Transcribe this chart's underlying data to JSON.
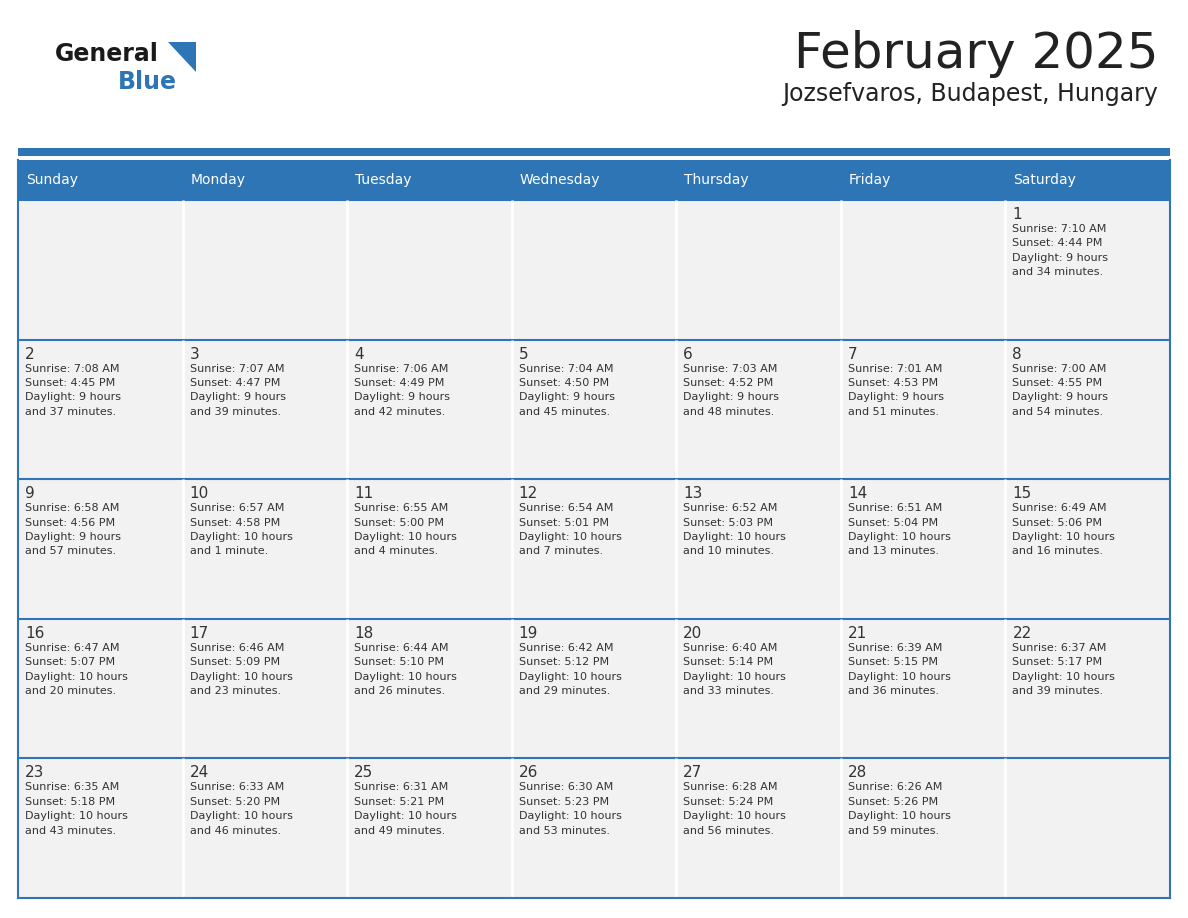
{
  "title": "February 2025",
  "subtitle": "Jozsefvaros, Budapest, Hungary",
  "header_bg": "#2E75B6",
  "header_text_color": "#FFFFFF",
  "cell_bg": "#FFFFFF",
  "row_sep_color": "#2E75B6",
  "border_color": "#2E75B6",
  "day_headers": [
    "Sunday",
    "Monday",
    "Tuesday",
    "Wednesday",
    "Thursday",
    "Friday",
    "Saturday"
  ],
  "title_color": "#222222",
  "subtitle_color": "#222222",
  "day_number_color": "#333333",
  "info_text_color": "#333333",
  "logo_general_color": "#1a1a1a",
  "logo_blue_color": "#2E75B6",
  "top_strip_color": "#2E75B6",
  "calendar_data": [
    [
      {
        "day": null,
        "info": null
      },
      {
        "day": null,
        "info": null
      },
      {
        "day": null,
        "info": null
      },
      {
        "day": null,
        "info": null
      },
      {
        "day": null,
        "info": null
      },
      {
        "day": null,
        "info": null
      },
      {
        "day": "1",
        "info": "Sunrise: 7:10 AM\nSunset: 4:44 PM\nDaylight: 9 hours\nand 34 minutes."
      }
    ],
    [
      {
        "day": "2",
        "info": "Sunrise: 7:08 AM\nSunset: 4:45 PM\nDaylight: 9 hours\nand 37 minutes."
      },
      {
        "day": "3",
        "info": "Sunrise: 7:07 AM\nSunset: 4:47 PM\nDaylight: 9 hours\nand 39 minutes."
      },
      {
        "day": "4",
        "info": "Sunrise: 7:06 AM\nSunset: 4:49 PM\nDaylight: 9 hours\nand 42 minutes."
      },
      {
        "day": "5",
        "info": "Sunrise: 7:04 AM\nSunset: 4:50 PM\nDaylight: 9 hours\nand 45 minutes."
      },
      {
        "day": "6",
        "info": "Sunrise: 7:03 AM\nSunset: 4:52 PM\nDaylight: 9 hours\nand 48 minutes."
      },
      {
        "day": "7",
        "info": "Sunrise: 7:01 AM\nSunset: 4:53 PM\nDaylight: 9 hours\nand 51 minutes."
      },
      {
        "day": "8",
        "info": "Sunrise: 7:00 AM\nSunset: 4:55 PM\nDaylight: 9 hours\nand 54 minutes."
      }
    ],
    [
      {
        "day": "9",
        "info": "Sunrise: 6:58 AM\nSunset: 4:56 PM\nDaylight: 9 hours\nand 57 minutes."
      },
      {
        "day": "10",
        "info": "Sunrise: 6:57 AM\nSunset: 4:58 PM\nDaylight: 10 hours\nand 1 minute."
      },
      {
        "day": "11",
        "info": "Sunrise: 6:55 AM\nSunset: 5:00 PM\nDaylight: 10 hours\nand 4 minutes."
      },
      {
        "day": "12",
        "info": "Sunrise: 6:54 AM\nSunset: 5:01 PM\nDaylight: 10 hours\nand 7 minutes."
      },
      {
        "day": "13",
        "info": "Sunrise: 6:52 AM\nSunset: 5:03 PM\nDaylight: 10 hours\nand 10 minutes."
      },
      {
        "day": "14",
        "info": "Sunrise: 6:51 AM\nSunset: 5:04 PM\nDaylight: 10 hours\nand 13 minutes."
      },
      {
        "day": "15",
        "info": "Sunrise: 6:49 AM\nSunset: 5:06 PM\nDaylight: 10 hours\nand 16 minutes."
      }
    ],
    [
      {
        "day": "16",
        "info": "Sunrise: 6:47 AM\nSunset: 5:07 PM\nDaylight: 10 hours\nand 20 minutes."
      },
      {
        "day": "17",
        "info": "Sunrise: 6:46 AM\nSunset: 5:09 PM\nDaylight: 10 hours\nand 23 minutes."
      },
      {
        "day": "18",
        "info": "Sunrise: 6:44 AM\nSunset: 5:10 PM\nDaylight: 10 hours\nand 26 minutes."
      },
      {
        "day": "19",
        "info": "Sunrise: 6:42 AM\nSunset: 5:12 PM\nDaylight: 10 hours\nand 29 minutes."
      },
      {
        "day": "20",
        "info": "Sunrise: 6:40 AM\nSunset: 5:14 PM\nDaylight: 10 hours\nand 33 minutes."
      },
      {
        "day": "21",
        "info": "Sunrise: 6:39 AM\nSunset: 5:15 PM\nDaylight: 10 hours\nand 36 minutes."
      },
      {
        "day": "22",
        "info": "Sunrise: 6:37 AM\nSunset: 5:17 PM\nDaylight: 10 hours\nand 39 minutes."
      }
    ],
    [
      {
        "day": "23",
        "info": "Sunrise: 6:35 AM\nSunset: 5:18 PM\nDaylight: 10 hours\nand 43 minutes."
      },
      {
        "day": "24",
        "info": "Sunrise: 6:33 AM\nSunset: 5:20 PM\nDaylight: 10 hours\nand 46 minutes."
      },
      {
        "day": "25",
        "info": "Sunrise: 6:31 AM\nSunset: 5:21 PM\nDaylight: 10 hours\nand 49 minutes."
      },
      {
        "day": "26",
        "info": "Sunrise: 6:30 AM\nSunset: 5:23 PM\nDaylight: 10 hours\nand 53 minutes."
      },
      {
        "day": "27",
        "info": "Sunrise: 6:28 AM\nSunset: 5:24 PM\nDaylight: 10 hours\nand 56 minutes."
      },
      {
        "day": "28",
        "info": "Sunrise: 6:26 AM\nSunset: 5:26 PM\nDaylight: 10 hours\nand 59 minutes."
      },
      {
        "day": null,
        "info": null
      }
    ]
  ]
}
